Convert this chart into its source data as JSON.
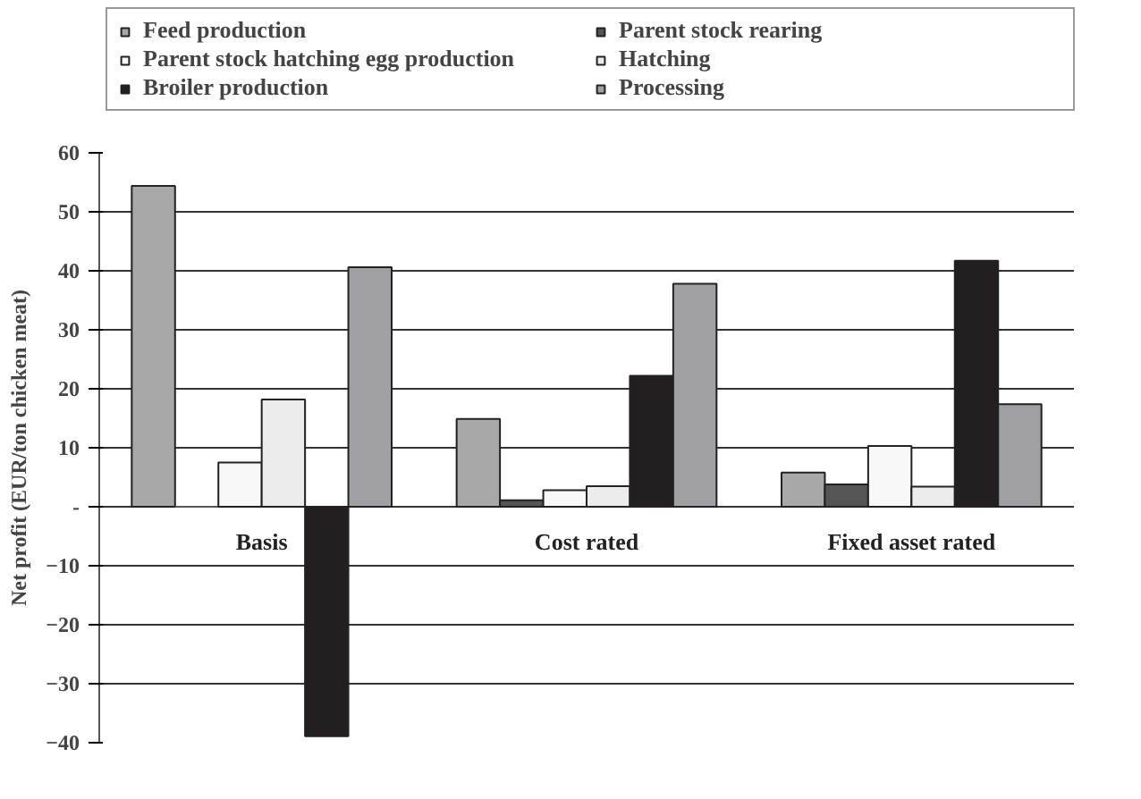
{
  "chart_data": {
    "type": "bar",
    "ylabel": "Net profit (EUR/ton chicken meat)",
    "categories": [
      "Basis",
      "Cost rated",
      "Fixed asset rated"
    ],
    "series": [
      {
        "name": "Feed production",
        "color": "#a8a8a8",
        "values": [
          54.4,
          14.9,
          5.8
        ]
      },
      {
        "name": "Parent stock rearing",
        "color": "#555555",
        "values": [
          0,
          1.1,
          3.8
        ]
      },
      {
        "name": "Parent stock hatching egg production",
        "color": "#f8f8f8",
        "values": [
          7.5,
          2.8,
          10.3
        ]
      },
      {
        "name": "Hatching",
        "color": "#ececec",
        "values": [
          18.2,
          3.5,
          3.4
        ]
      },
      {
        "name": "Broiler production",
        "color": "#231f20",
        "values": [
          -38.9,
          22.2,
          41.7
        ]
      },
      {
        "name": "Processing",
        "color": "#a0a0a4",
        "values": [
          40.6,
          37.8,
          17.4
        ]
      }
    ],
    "ylim": [
      -40,
      60
    ],
    "yticks": [
      -40,
      -30,
      -20,
      -10,
      {
        "value": 0,
        "label": "-"
      },
      10,
      20,
      30,
      40,
      50,
      60
    ],
    "grid": "y",
    "legend": "top"
  }
}
